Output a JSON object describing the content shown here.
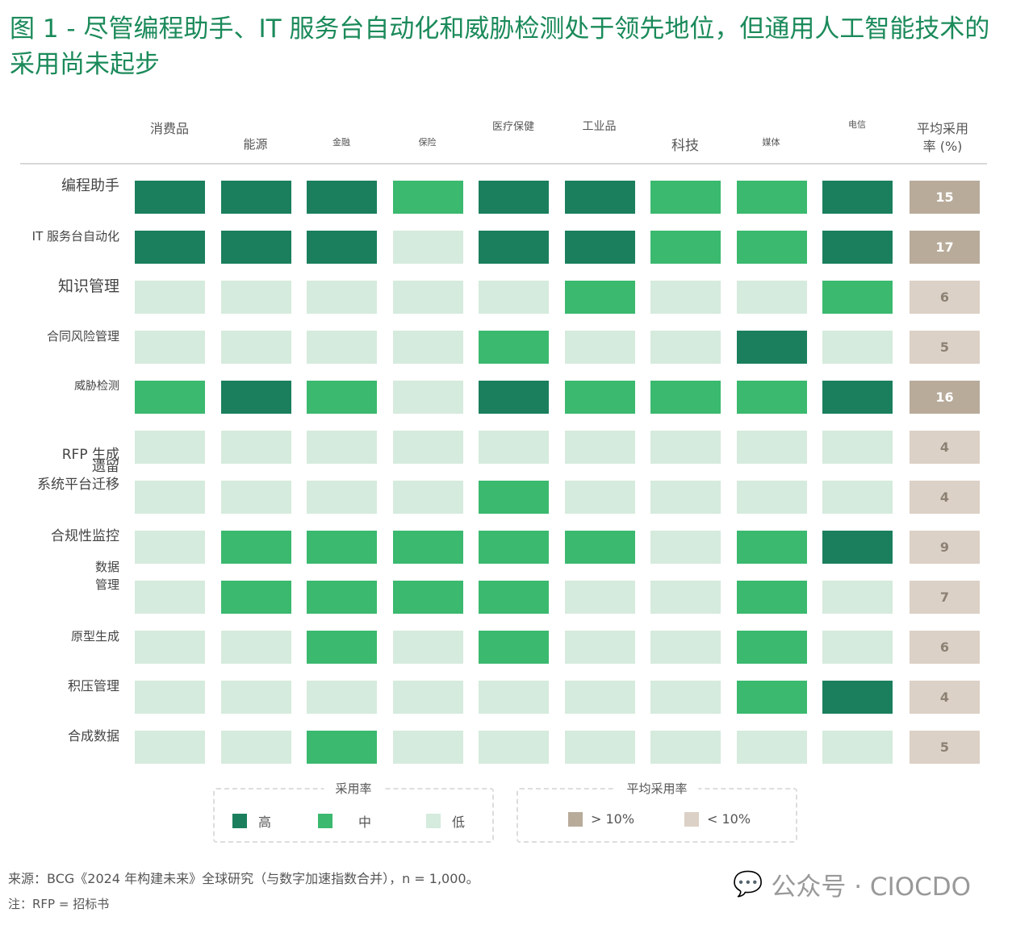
{
  "title": "图 1 - 尽管编程助手、IT 服务台自动化和威胁检测处于领先地位，但通用人工智能技术的采用尚未起步",
  "chart_data": {
    "type": "heatmap",
    "title": "图 1 - 尽管编程助手、IT 服务台自动化和威胁检测处于领先地位，但通用人工智能技术的采用尚未起步",
    "columns": [
      "消费品",
      "能源",
      "金融",
      "保险",
      "医疗保健",
      "工业品",
      "科技",
      "媒体",
      "电信"
    ],
    "avg_header": [
      "平均采用",
      "率 (%)"
    ],
    "rows": [
      {
        "label": "编程助手",
        "levels": [
          "H",
          "H",
          "H",
          "M",
          "H",
          "H",
          "M",
          "M",
          "H"
        ],
        "avg": 15
      },
      {
        "label": "IT 服务台自动化",
        "levels": [
          "H",
          "H",
          "H",
          "L",
          "H",
          "H",
          "M",
          "M",
          "H"
        ],
        "avg": 17
      },
      {
        "label": "知识管理",
        "levels": [
          "L",
          "L",
          "L",
          "L",
          "L",
          "M",
          "L",
          "L",
          "M"
        ],
        "avg": 6
      },
      {
        "label": "合同风险管理",
        "levels": [
          "L",
          "L",
          "L",
          "L",
          "M",
          "L",
          "L",
          "H",
          "L"
        ],
        "avg": 5
      },
      {
        "label": "威胁检测",
        "levels": [
          "M",
          "H",
          "M",
          "L",
          "H",
          "M",
          "M",
          "M",
          "H"
        ],
        "avg": 16
      },
      {
        "label": "RFP 生成",
        "levels": [
          "L",
          "L",
          "L",
          "L",
          "L",
          "L",
          "L",
          "L",
          "L"
        ],
        "avg": 4
      },
      {
        "label": "遗留\n系统平台迁移",
        "levels": [
          "L",
          "L",
          "L",
          "L",
          "M",
          "L",
          "L",
          "L",
          "L"
        ],
        "avg": 4
      },
      {
        "label": "合规性监控",
        "levels": [
          "L",
          "M",
          "M",
          "M",
          "M",
          "M",
          "L",
          "M",
          "H"
        ],
        "avg": 9
      },
      {
        "label": "数据\n管理",
        "levels": [
          "L",
          "M",
          "M",
          "M",
          "M",
          "L",
          "L",
          "M",
          "L"
        ],
        "avg": 7
      },
      {
        "label": "原型生成",
        "levels": [
          "L",
          "L",
          "M",
          "L",
          "M",
          "L",
          "L",
          "M",
          "L"
        ],
        "avg": 6
      },
      {
        "label": "积压管理",
        "levels": [
          "L",
          "L",
          "L",
          "L",
          "L",
          "L",
          "L",
          "M",
          "H"
        ],
        "avg": 4
      },
      {
        "label": "合成数据",
        "levels": [
          "L",
          "L",
          "M",
          "L",
          "L",
          "L",
          "L",
          "L",
          "L"
        ],
        "avg": 5
      }
    ],
    "colors": {
      "H": "#1b7f5e",
      "M": "#3bb96f",
      "L": "#d5ebdd",
      "avg_high": "#b8ab9a",
      "avg_low": "#dcd1c6"
    },
    "legend": {
      "rate_title": "采用率",
      "high": "高",
      "mid": "中",
      "low": "低",
      "avg_title": "平均采用率",
      "avg_high": "> 10%",
      "avg_low": "< 10%"
    }
  },
  "footer": {
    "source": "来源：BCG《2024 年构建未来》全球研究（与数字加速指数合并），n = 1,000。",
    "note": "注：RFP = 招标书"
  },
  "watermark": "公众号 · CIOCDO"
}
